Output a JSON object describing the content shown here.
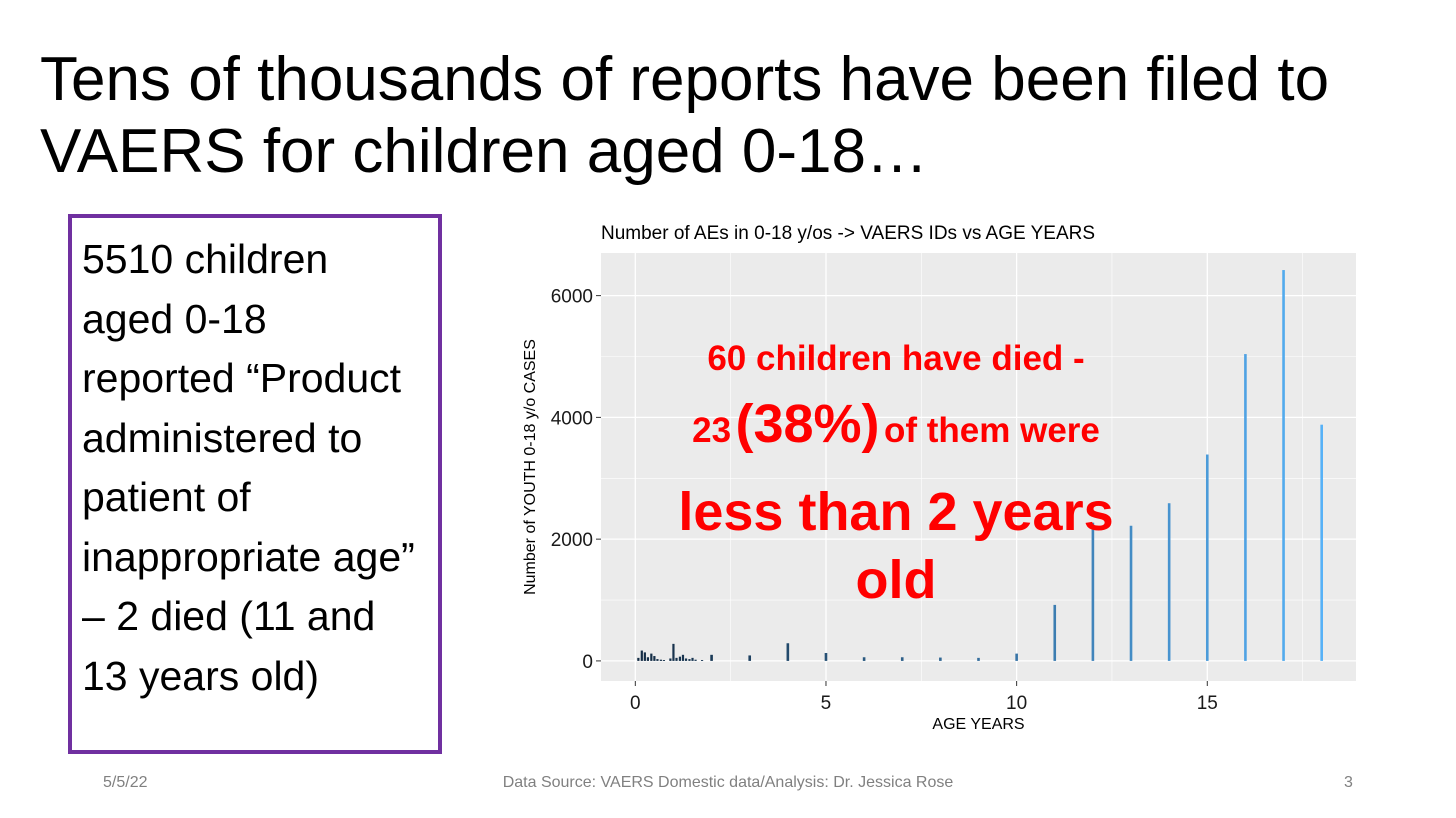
{
  "slide": {
    "title_line1": "Tens of thousands of reports have been filed to",
    "title_line2": "VAERS for children aged 0-18…",
    "callout": "5510 children aged 0-18 reported “Product administered to patient of inappropriate age” – 2 died (11 and 13 years old)",
    "overlay": {
      "line1": "60 children have died -",
      "line2_a": "23",
      "line2_b": "(38%)",
      "line2_c": "of them were",
      "line3": "less than 2 years old"
    },
    "footer": {
      "date": "5/5/22",
      "source": "Data Source: VAERS Domestic data/Analysis: Dr. Jessica Rose",
      "page": "3"
    }
  },
  "colors": {
    "title": "#000000",
    "callout_border": "#7030a0",
    "overlay_text": "#ff0000",
    "panel_bg": "#ebebeb",
    "grid": "#ffffff",
    "bar_low": "#132b43",
    "bar_high": "#56b1f7",
    "footer_text": "#808080"
  },
  "chart_data": {
    "type": "bar",
    "title": "Number of AEs in 0-18 y/os  -> VAERS IDs vs AGE YEARS",
    "xlabel": "AGE YEARS",
    "ylabel": "Number of YOUTH 0-18 y/o CASES",
    "xlim": [
      -0.9,
      18.9
    ],
    "ylim": [
      -330,
      6700
    ],
    "x_ticks": [
      0,
      5,
      10,
      15
    ],
    "y_ticks": [
      0,
      2000,
      4000,
      6000
    ],
    "y_tick_labels": [
      "0",
      "2000",
      "4000",
      "6000"
    ],
    "x_tick_labels": [
      "0",
      "5",
      "10",
      "15"
    ],
    "grid": true,
    "legend": "none",
    "x": [
      0.08,
      0.17,
      0.25,
      0.33,
      0.42,
      0.5,
      0.58,
      0.67,
      0.75,
      0.92,
      1.0,
      1.08,
      1.17,
      1.25,
      1.33,
      1.42,
      1.5,
      1.58,
      1.75,
      2,
      3,
      4,
      5,
      6,
      7,
      8,
      9,
      10,
      11,
      12,
      13,
      14,
      15,
      16,
      17,
      18
    ],
    "values": [
      50,
      170,
      140,
      60,
      120,
      80,
      30,
      20,
      15,
      40,
      280,
      50,
      70,
      100,
      40,
      30,
      50,
      20,
      15,
      100,
      90,
      290,
      130,
      60,
      60,
      55,
      50,
      120,
      920,
      2270,
      2220,
      2590,
      3390,
      5040,
      6420,
      3880
    ]
  }
}
